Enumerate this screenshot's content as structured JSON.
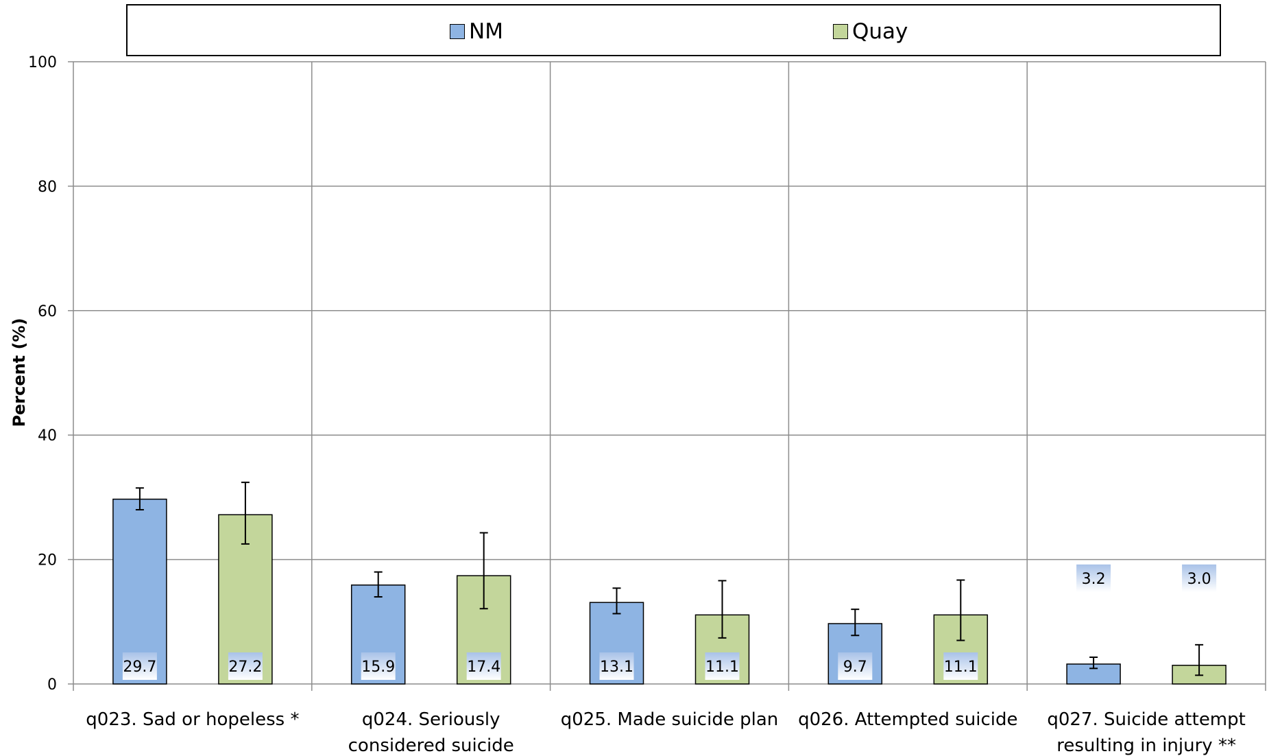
{
  "chart_data": {
    "type": "bar",
    "title": "",
    "xlabel": "",
    "ylabel": "Percent (%)",
    "ylim": [
      0,
      100
    ],
    "yticks": [
      0,
      20,
      40,
      60,
      80,
      100
    ],
    "grid": true,
    "legend_position": "top",
    "categories": [
      [
        "q023. Sad or hopeless *"
      ],
      [
        "q024. Seriously",
        "considered suicide"
      ],
      [
        "q025. Made suicide plan"
      ],
      [
        "q026. Attempted suicide"
      ],
      [
        "q027. Suicide attempt",
        "resulting in injury **"
      ]
    ],
    "series": [
      {
        "name": "NM",
        "color": "#8EB4E3",
        "values": [
          29.7,
          15.9,
          13.1,
          9.7,
          3.2
        ],
        "labels": [
          "29.7",
          "15.9",
          "13.1",
          "9.7",
          "3.2"
        ],
        "ci_low": [
          28.0,
          14.0,
          11.3,
          7.8,
          2.5
        ],
        "ci_high": [
          31.5,
          18.0,
          15.4,
          12.0,
          4.3
        ]
      },
      {
        "name": "Quay",
        "color": "#C3D69B",
        "values": [
          27.2,
          17.4,
          11.1,
          11.1,
          3.0
        ],
        "labels": [
          "27.2",
          "17.4",
          "11.1",
          "11.1",
          "3.0"
        ],
        "ci_low": [
          22.5,
          12.1,
          7.4,
          7.0,
          1.4
        ],
        "ci_high": [
          32.4,
          24.3,
          16.6,
          16.7,
          6.3
        ]
      }
    ]
  }
}
